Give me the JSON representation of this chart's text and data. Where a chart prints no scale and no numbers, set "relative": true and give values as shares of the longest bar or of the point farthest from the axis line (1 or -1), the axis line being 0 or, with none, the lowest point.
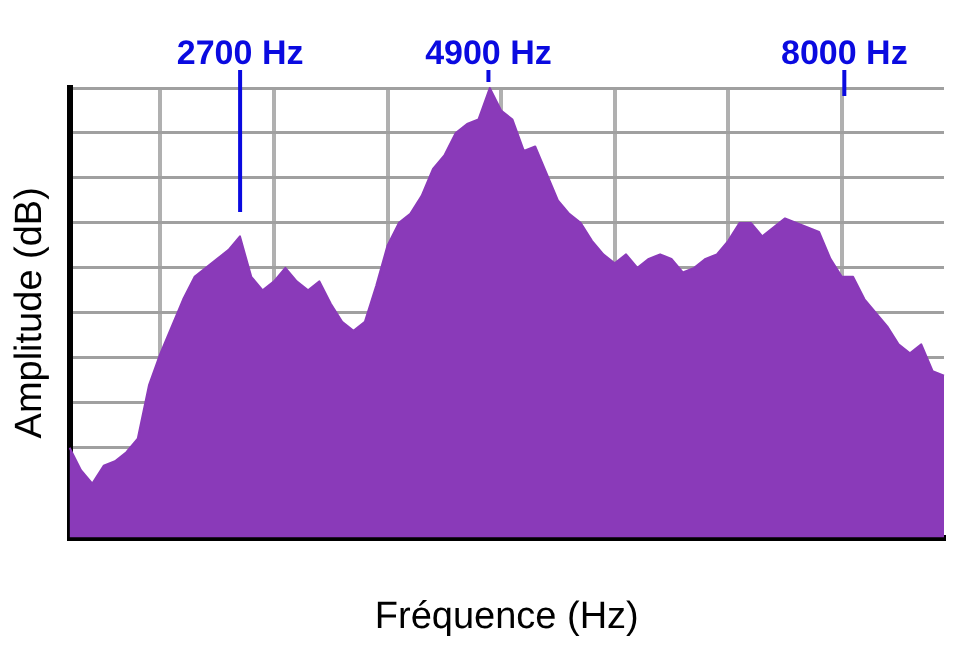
{
  "chart_data": {
    "type": "area",
    "relative": true,
    "xlabel": "Fréquence (Hz)",
    "ylabel": "Amplitude (dB)",
    "color": "#8a3ab9",
    "categories": [
      null,
      null,
      null,
      null,
      null,
      null,
      null,
      null,
      null,
      null,
      null,
      null,
      null,
      null,
      null,
      null,
      null,
      null,
      null,
      null,
      null,
      null,
      null,
      null,
      null,
      null,
      null,
      null,
      null,
      null,
      null,
      null,
      null,
      null,
      null,
      null,
      null,
      null,
      null,
      null,
      null,
      null,
      null,
      null,
      null,
      null,
      null,
      null,
      null,
      null,
      null,
      null,
      null,
      null,
      null,
      null,
      null,
      null,
      null,
      null,
      null,
      null,
      null,
      null,
      null,
      null,
      null,
      null,
      null,
      null,
      null,
      null,
      null,
      null,
      null,
      null,
      null,
      null
    ],
    "values": [
      0.2,
      0.15,
      0.12,
      0.16,
      0.17,
      0.19,
      0.22,
      0.34,
      0.41,
      0.47,
      0.53,
      0.58,
      0.6,
      0.62,
      0.64,
      0.67,
      0.58,
      0.55,
      0.57,
      0.6,
      0.57,
      0.55,
      0.57,
      0.52,
      0.48,
      0.46,
      0.48,
      0.56,
      0.65,
      0.7,
      0.72,
      0.76,
      0.82,
      0.85,
      0.9,
      0.92,
      0.93,
      1,
      0.95,
      0.93,
      0.86,
      0.87,
      0.81,
      0.75,
      0.72,
      0.7,
      0.66,
      0.63,
      0.61,
      0.63,
      0.6,
      0.62,
      0.63,
      0.62,
      0.59,
      0.6,
      0.62,
      0.63,
      0.66,
      0.7,
      0.7,
      0.67,
      0.69,
      0.71,
      0.7,
      0.69,
      0.68,
      0.62,
      0.58,
      0.58,
      0.53,
      0.5,
      0.47,
      0.43,
      0.41,
      0.43,
      0.37,
      0.36
    ],
    "grid": true,
    "legend": false,
    "annotations": [
      "2700 Hz",
      "4900 Hz",
      "8000 Hz"
    ]
  }
}
